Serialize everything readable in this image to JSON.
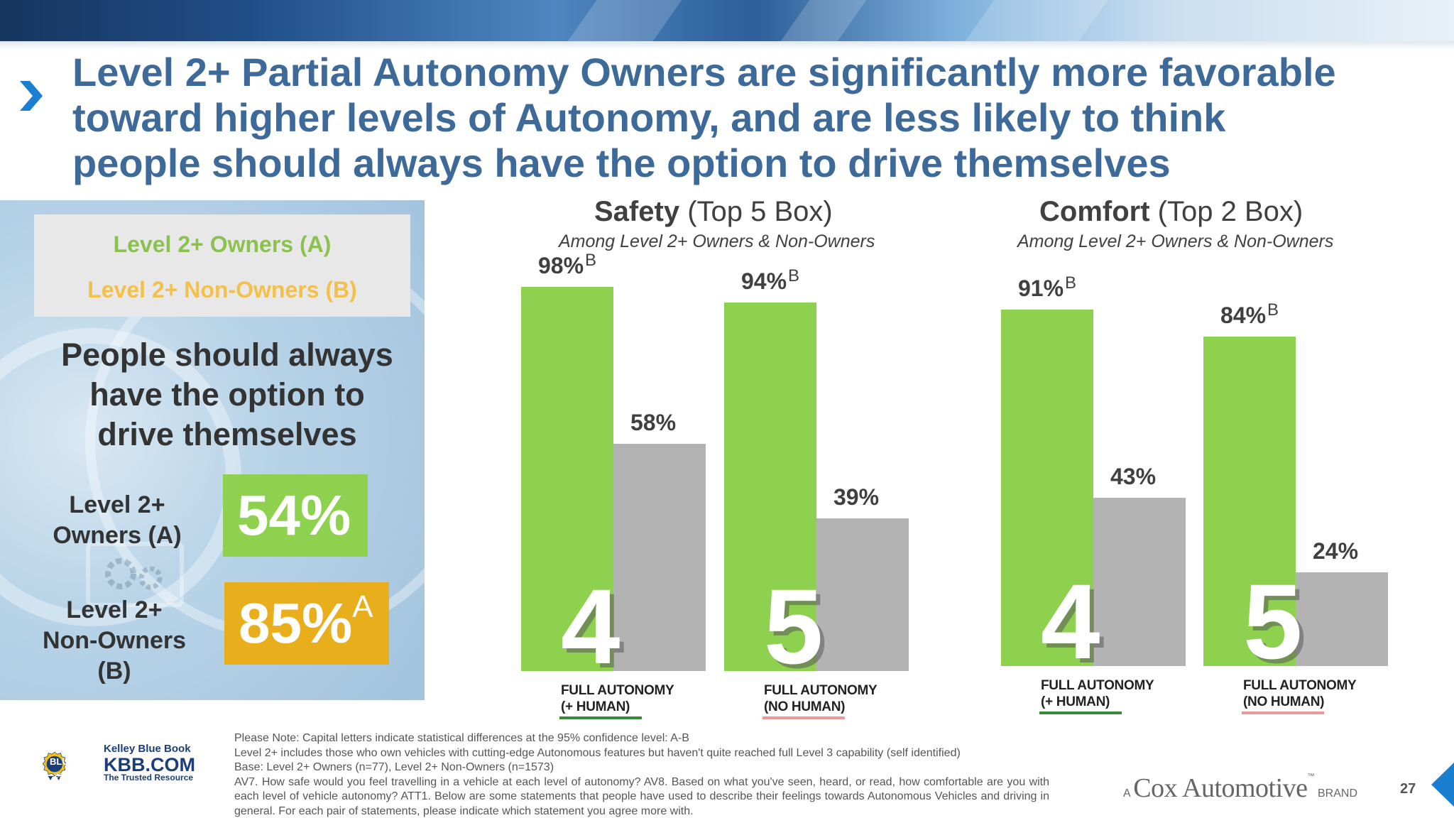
{
  "slide": {
    "title_lines": [
      "Level 2+ Partial Autonomy Owners are significantly more favorable",
      "toward higher levels of Autonomy, and are less likely to think",
      "people should always have the option to drive themselves"
    ],
    "page_number": "27"
  },
  "colors": {
    "owners": "#8ed14f",
    "non_owners": "#b3b3b4",
    "title": "#3e6a9a",
    "stat_a": "#8ed14f",
    "stat_b": "#e9ae1c"
  },
  "left_panel": {
    "legend": {
      "a": "Level 2+ Owners (A)",
      "b": "Level 2+ Non-Owners (B)"
    },
    "statement_lines": [
      "People should always",
      "have the option to",
      "drive themselves"
    ],
    "groups": [
      {
        "label_lines": [
          "Level 2+",
          "Owners (A)"
        ],
        "value": "54%",
        "sig": ""
      },
      {
        "label_lines": [
          "Level 2+",
          "Non-Owners",
          "(B)"
        ],
        "value": "85%",
        "sig": "A"
      }
    ]
  },
  "chart_data": [
    {
      "type": "bar",
      "title_bold": "Safety",
      "title_rest": "(Top 5 Box)",
      "subtitle": "Among Level 2+ Owners & Non-Owners",
      "ylim": [
        0,
        100
      ],
      "groups": [
        {
          "level": "4",
          "caption": [
            "FULL AUTONOMY",
            "(+ HUMAN)"
          ],
          "underline": "#3a8a3c"
        },
        {
          "level": "5",
          "caption": [
            "FULL AUTONOMY",
            "(NO HUMAN)"
          ],
          "underline": "#e79a9a"
        }
      ],
      "series": [
        {
          "name": "Level 2+ Owners (A)",
          "values": [
            98,
            94
          ],
          "sig": [
            "B",
            "B"
          ]
        },
        {
          "name": "Level 2+ Non-Owners (B)",
          "values": [
            58,
            39
          ],
          "sig": [
            "",
            ""
          ]
        }
      ]
    },
    {
      "type": "bar",
      "title_bold": "Comfort",
      "title_rest": "(Top 2 Box)",
      "subtitle": "Among Level 2+ Owners & Non-Owners",
      "ylim": [
        0,
        100
      ],
      "groups": [
        {
          "level": "4",
          "caption": [
            "FULL AUTONOMY",
            "(+ HUMAN)"
          ],
          "underline": "#3a8a3c"
        },
        {
          "level": "5",
          "caption": [
            "FULL AUTONOMY",
            "(NO HUMAN)"
          ],
          "underline": "#e79a9a"
        }
      ],
      "series": [
        {
          "name": "Level 2+ Owners (A)",
          "values": [
            91,
            84
          ],
          "sig": [
            "B",
            "B"
          ]
        },
        {
          "name": "Level 2+ Non-Owners (B)",
          "values": [
            43,
            24
          ],
          "sig": [
            "",
            ""
          ]
        }
      ]
    }
  ],
  "logo": {
    "line1": "Kelley Blue Book",
    "line2": "KBB.COM",
    "line3": "The Trusted Resource",
    "badge_top": "KELLEY",
    "badge_mid": "BLUE BOOK",
    "badge_bottom": "OFFICIAL GUIDE"
  },
  "footnotes": [
    "Please Note: Capital letters indicate statistical differences at the 95% confidence level: A-B",
    "Level 2+ includes those who own vehicles with cutting-edge Autonomous features but haven't quite reached full Level 3 capability (self identified)",
    "Base: Level 2+ Owners (n=77), Level 2+ Non-Owners (n=1573)",
    "AV7. How safe would you feel travelling in a vehicle at each level of autonomy?  AV8. Based on what you've seen, heard, or read, how comfortable are you with each level of vehicle autonomy? ATT1. Below are some statements that people have used to describe their feelings towards Autonomous Vehicles and driving in general. For each pair of statements, please indicate which statement you agree more with."
  ],
  "brand": {
    "prefix": "A",
    "name": "Cox Automotive",
    "tm": "™",
    "suffix": "BRAND"
  }
}
